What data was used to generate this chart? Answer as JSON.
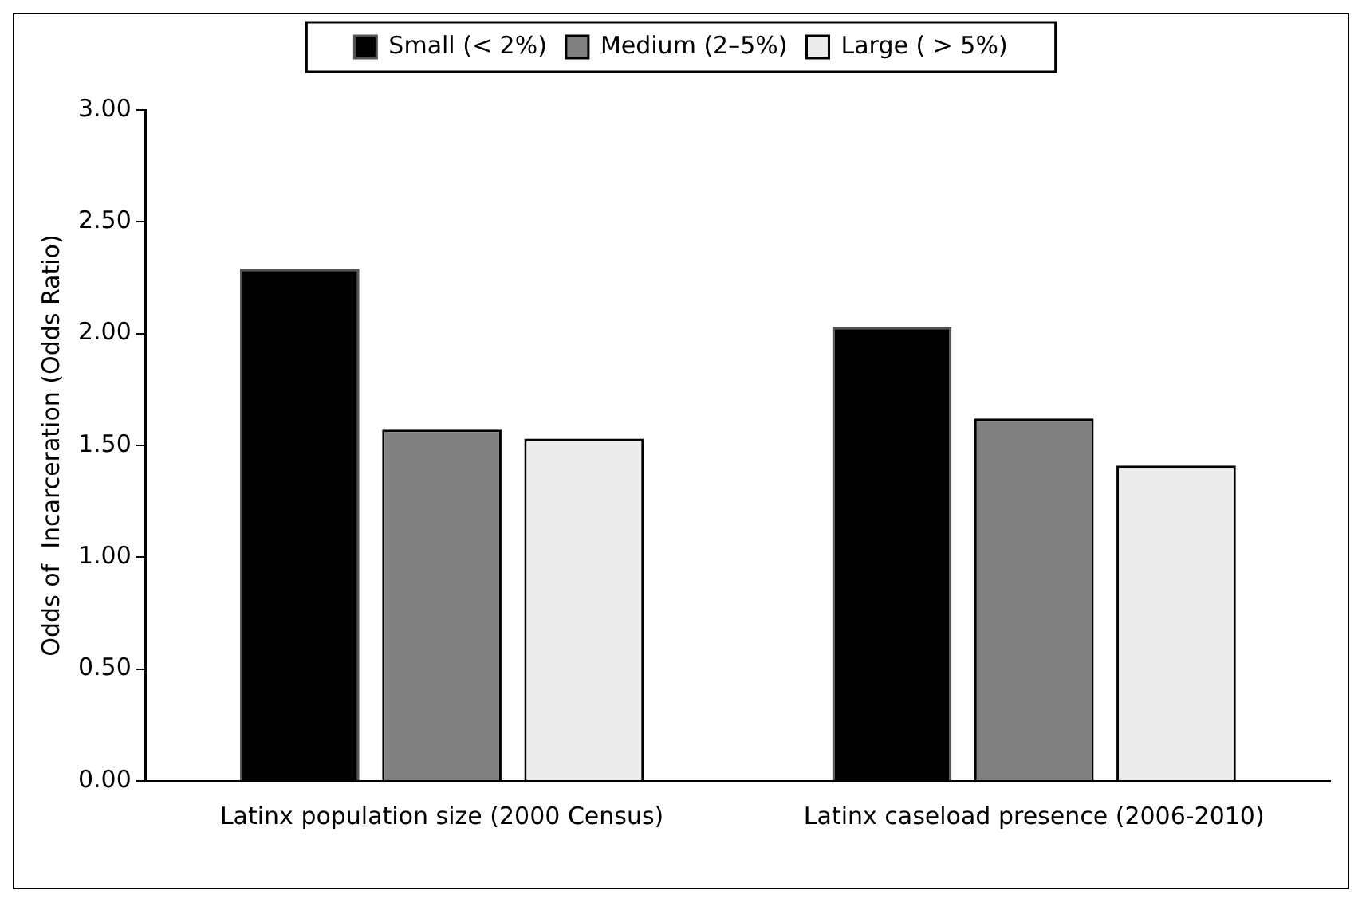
{
  "chart_data": {
    "type": "bar",
    "ylabel": "Odds of  Incarceration (Odds Ratio)",
    "categories": [
      "Latinx population size (2000 Census)",
      "Latinx caseload presence (2006-2010)"
    ],
    "series": [
      {
        "name": "Small (< 2%)",
        "color": "#000000",
        "values": [
          2.29,
          2.03
        ]
      },
      {
        "name": "Medium (2–5%)",
        "color": "#808080",
        "values": [
          1.57,
          1.62
        ]
      },
      {
        "name": "Large ( > 5%)",
        "color": "#ececec",
        "values": [
          1.53,
          1.41
        ]
      }
    ],
    "ylim": [
      0,
      3
    ],
    "yticks": [
      {
        "value": 0,
        "label": "0.00"
      },
      {
        "value": 0.5,
        "label": "0.50"
      },
      {
        "value": 1,
        "label": "1.00"
      },
      {
        "value": 1.5,
        "label": "1.50"
      },
      {
        "value": 2,
        "label": "2.00"
      },
      {
        "value": 2.5,
        "label": "2.50"
      },
      {
        "value": 3,
        "label": "3.00"
      }
    ],
    "grid": false,
    "legend": "top"
  }
}
